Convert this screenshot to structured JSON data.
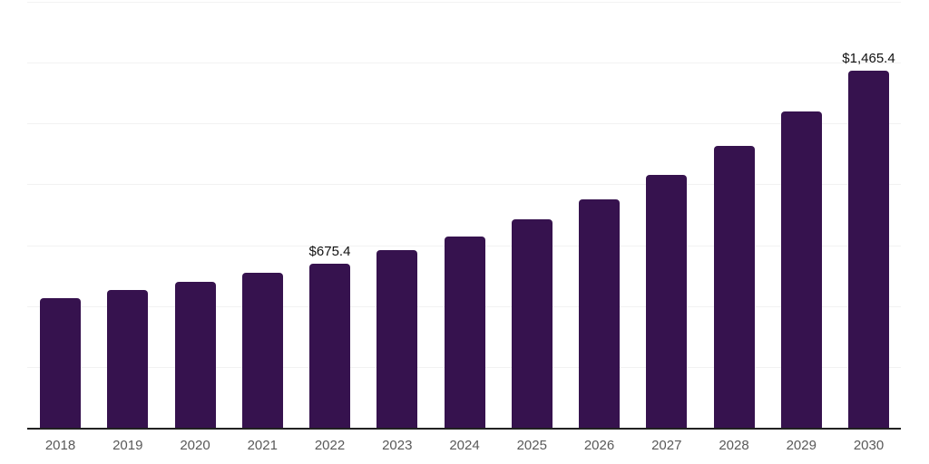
{
  "chart_data": {
    "type": "bar",
    "title": "",
    "xlabel": "",
    "ylabel": "",
    "categories": [
      "2018",
      "2019",
      "2020",
      "2021",
      "2022",
      "2023",
      "2024",
      "2025",
      "2026",
      "2027",
      "2028",
      "2029",
      "2030"
    ],
    "values": [
      531.7,
      564.8,
      601.1,
      638.1,
      675.4,
      731.2,
      787.4,
      858.4,
      939.8,
      1040.0,
      1159.2,
      1300.1,
      1465.4
    ],
    "point_labels": [
      "",
      "",
      "",
      "",
      "$675.4",
      "",
      "",
      "",
      "",
      "",
      "",
      "",
      "$1,465.4"
    ],
    "ylim": [
      0,
      1750
    ],
    "grid_step": 250,
    "grid": "horizontal",
    "legend_position": "none",
    "colors": {
      "bar": "#36124E",
      "axis_line": "#212121",
      "gridline": "#F2F2F2",
      "data_label": "#111111",
      "tick_label": "#595959",
      "background": "#FFFFFF"
    }
  }
}
